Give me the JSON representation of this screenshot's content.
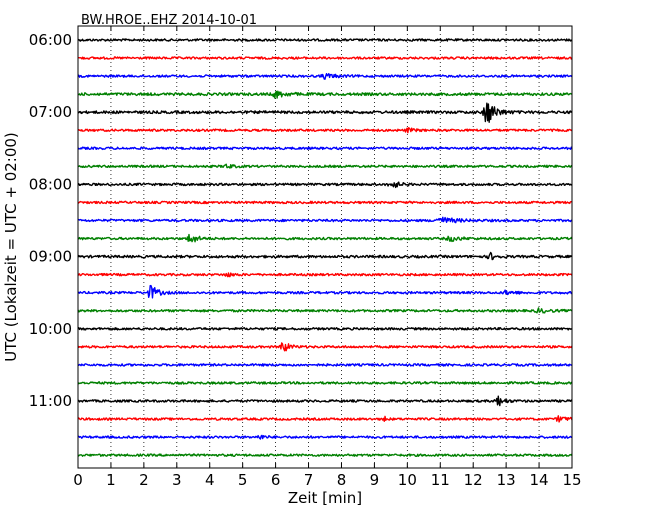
{
  "chart_data": {
    "type": "line",
    "title": "BW.HROE..EHZ 2014-10-01",
    "xlabel": "Zeit  [min]",
    "ylabel": "UTC (Lokalzeit = UTC + 02:00)",
    "xlim": [
      0,
      15
    ],
    "x_ticks": [
      "0",
      "1",
      "2",
      "3",
      "4",
      "5",
      "6",
      "7",
      "8",
      "9",
      "10",
      "11",
      "12",
      "13",
      "14",
      "15"
    ],
    "y_tick_labels": [
      "06:00",
      "07:00",
      "08:00",
      "09:00",
      "10:00",
      "11:00"
    ],
    "grid": "vertical-dotted",
    "colors": {
      "black": "#000000",
      "red": "#ff0000",
      "blue": "#0000ff",
      "green": "#008000"
    },
    "series": [
      {
        "start": "06:00",
        "color": "#000000",
        "amp": 1.0,
        "events": []
      },
      {
        "start": "06:15",
        "color": "#ff0000",
        "amp": 1.0,
        "events": []
      },
      {
        "start": "06:30",
        "color": "#0000ff",
        "amp": 1.0,
        "events": [
          {
            "t": 7.5,
            "a": 2.5,
            "w": 0.6
          }
        ]
      },
      {
        "start": "06:45",
        "color": "#008000",
        "amp": 1.2,
        "events": [
          {
            "t": 6.0,
            "a": 3.5,
            "w": 0.6
          }
        ]
      },
      {
        "start": "07:00",
        "color": "#000000",
        "amp": 1.2,
        "events": [
          {
            "t": 12.4,
            "a": 14,
            "w": 0.5
          }
        ]
      },
      {
        "start": "07:15",
        "color": "#ff0000",
        "amp": 1.0,
        "events": [
          {
            "t": 10.0,
            "a": 2,
            "w": 0.4
          }
        ]
      },
      {
        "start": "07:30",
        "color": "#0000ff",
        "amp": 1.0,
        "events": []
      },
      {
        "start": "07:45",
        "color": "#008000",
        "amp": 1.0,
        "events": [
          {
            "t": 4.5,
            "a": 2,
            "w": 0.4
          }
        ]
      },
      {
        "start": "08:00",
        "color": "#000000",
        "amp": 1.0,
        "events": [
          {
            "t": 9.5,
            "a": 5,
            "w": 0.4
          }
        ]
      },
      {
        "start": "08:15",
        "color": "#ff0000",
        "amp": 1.0,
        "events": []
      },
      {
        "start": "08:30",
        "color": "#0000ff",
        "amp": 1.0,
        "events": [
          {
            "t": 11.0,
            "a": 3,
            "w": 1.0
          }
        ]
      },
      {
        "start": "08:45",
        "color": "#008000",
        "amp": 1.0,
        "events": [
          {
            "t": 3.4,
            "a": 6,
            "w": 0.4
          },
          {
            "t": 11.3,
            "a": 2.5,
            "w": 0.6
          }
        ]
      },
      {
        "start": "09:00",
        "color": "#000000",
        "amp": 1.1,
        "events": [
          {
            "t": 12.5,
            "a": 4,
            "w": 0.3
          }
        ]
      },
      {
        "start": "09:15",
        "color": "#ff0000",
        "amp": 1.0,
        "events": [
          {
            "t": 4.5,
            "a": 2,
            "w": 0.4
          }
        ]
      },
      {
        "start": "09:30",
        "color": "#0000ff",
        "amp": 1.0,
        "events": [
          {
            "t": 2.2,
            "a": 8,
            "w": 0.4
          },
          {
            "t": 13.0,
            "a": 2,
            "w": 0.5
          }
        ]
      },
      {
        "start": "09:45",
        "color": "#008000",
        "amp": 1.0,
        "events": [
          {
            "t": 14.0,
            "a": 2,
            "w": 0.6
          }
        ]
      },
      {
        "start": "10:00",
        "color": "#000000",
        "amp": 1.0,
        "events": []
      },
      {
        "start": "10:15",
        "color": "#ff0000",
        "amp": 1.0,
        "events": [
          {
            "t": 6.2,
            "a": 6,
            "w": 0.4
          }
        ]
      },
      {
        "start": "10:30",
        "color": "#0000ff",
        "amp": 1.0,
        "events": []
      },
      {
        "start": "10:45",
        "color": "#008000",
        "amp": 1.0,
        "events": []
      },
      {
        "start": "11:00",
        "color": "#000000",
        "amp": 1.0,
        "events": [
          {
            "t": 12.7,
            "a": 7,
            "w": 0.35
          }
        ]
      },
      {
        "start": "11:15",
        "color": "#ff0000",
        "amp": 1.0,
        "events": [
          {
            "t": 9.3,
            "a": 4,
            "w": 0.1
          },
          {
            "t": 14.6,
            "a": 3,
            "w": 0.4
          }
        ]
      },
      {
        "start": "11:30",
        "color": "#0000ff",
        "amp": 1.0,
        "events": [
          {
            "t": 5.5,
            "a": 2.5,
            "w": 0.3
          }
        ]
      },
      {
        "start": "11:45",
        "color": "#008000",
        "amp": 1.0,
        "events": []
      }
    ]
  }
}
